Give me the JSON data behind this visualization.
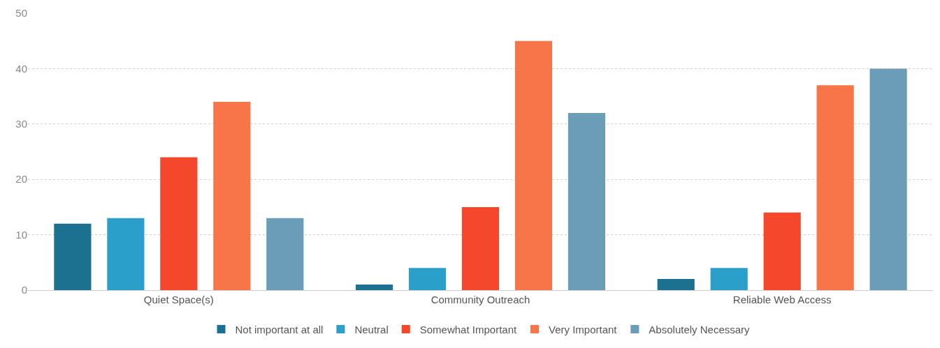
{
  "chart_data": {
    "type": "bar",
    "categories": [
      "Quiet Space(s)",
      "Community Outreach",
      "Reliable Web Access"
    ],
    "series": [
      {
        "name": "Not important at all",
        "color": "#1d7190",
        "values": [
          12,
          1,
          2
        ]
      },
      {
        "name": "Neutral",
        "color": "#2a9fc9",
        "values": [
          13,
          4,
          4
        ]
      },
      {
        "name": "Somewhat Important",
        "color": "#f4472c",
        "values": [
          24,
          15,
          14
        ]
      },
      {
        "name": "Very Important",
        "color": "#f77548",
        "values": [
          34,
          45,
          37
        ]
      },
      {
        "name": "Absolutely Necessary",
        "color": "#6b9cb8",
        "values": [
          13,
          32,
          40
        ]
      }
    ],
    "ylim": [
      0,
      50
    ],
    "yticks": [
      0,
      10,
      20,
      30,
      40,
      50
    ],
    "grid": "y",
    "legend": "bottom"
  }
}
